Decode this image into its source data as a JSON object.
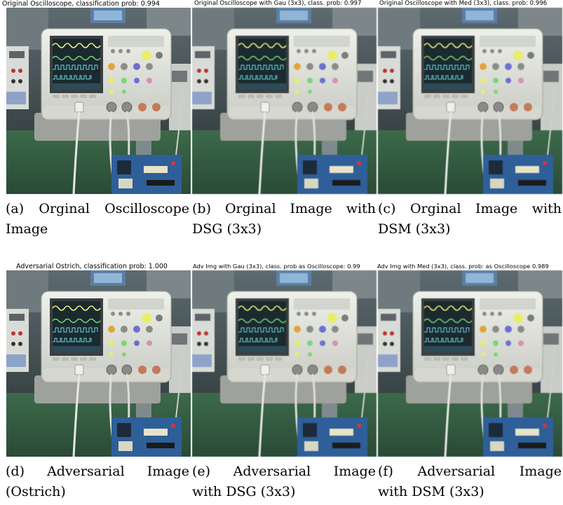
{
  "figure": {
    "panels": [
      {
        "title": "Original Oscilloscope, classification prob: 0.994",
        "caption_line1": "(a) Orginal Oscilloscope",
        "caption_line2": "Image"
      },
      {
        "title": "Original Oscilloscope with Gau (3x3), class. prob: 0.997",
        "caption_line1": "(b) Orginal Image with",
        "caption_line2": "DSG (3x3)"
      },
      {
        "title": "Original Oscilloscope with Med (3x3), class. prob: 0.996",
        "caption_line1": "(c) Orginal Image with",
        "caption_line2": "DSM (3x3)"
      },
      {
        "title": "Adversarial Ostrich, classification prob: 1.000",
        "caption_line1": "(d) Adversarial Image",
        "caption_line2": "(Ostrich)"
      },
      {
        "title": "Adv Img with Gau (3x3), class. prob as Oscilloscope: 0.99",
        "caption_line1": "(e) Adversarial Image",
        "caption_line2": "with DSG (3x3)"
      },
      {
        "title": "Adv Img with Med (3x3), class. prob: as Oscilloscope 0.989",
        "caption_line1": "(f) Adversarial Image",
        "caption_line2": "with DSM (3x3)"
      }
    ]
  }
}
